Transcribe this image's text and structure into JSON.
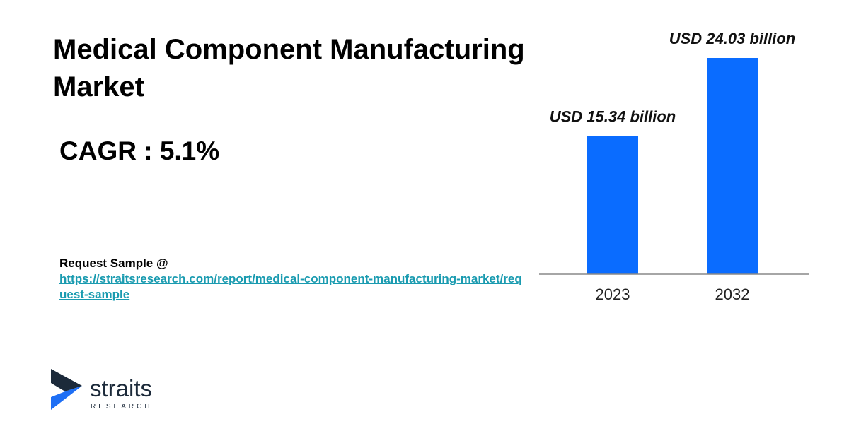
{
  "title": "Medical Component Manufacturing Market",
  "cagr": "CAGR : 5.1%",
  "request": {
    "label": "Request Sample @",
    "url": "https://straitsresearch.com/report/medical-component-manufacturing-market/request-sample"
  },
  "brand": {
    "name": "straits",
    "sub": "RESEARCH",
    "colors": {
      "arrow_dark": "#1c2a3a",
      "arrow_light": "#1e6ff5"
    }
  },
  "colors": {
    "bar": "#0a6cff",
    "link": "#1a9bb0",
    "axis": "#888888"
  },
  "chart_data": {
    "type": "bar",
    "categories": [
      "2023",
      "2032"
    ],
    "values": [
      15.34,
      24.03
    ],
    "data_labels": [
      "USD 15.34 billion",
      "USD 24.03 billion"
    ],
    "title": "",
    "xlabel": "",
    "ylabel": "",
    "ylim": [
      0,
      25.0
    ],
    "grid": false
  }
}
